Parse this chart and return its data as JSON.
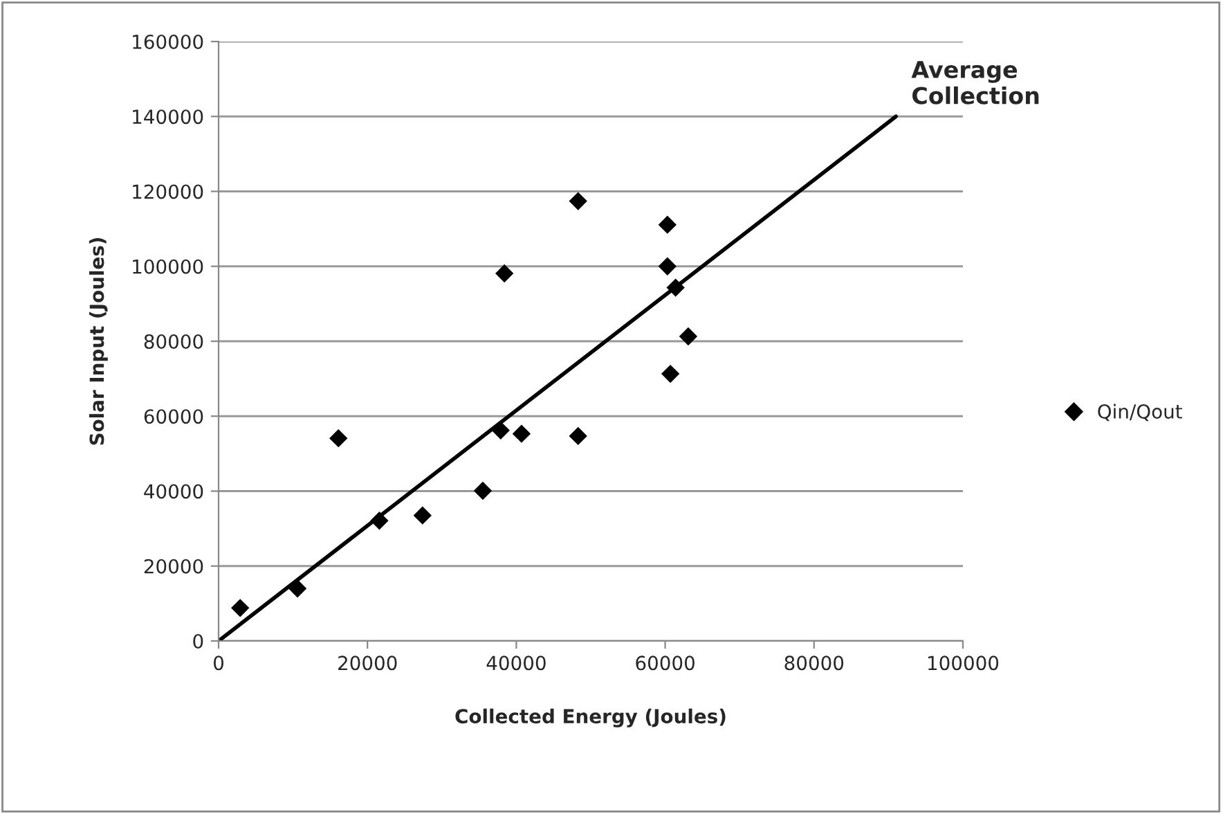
{
  "chart_data": {
    "type": "scatter",
    "xlabel": "Collected Energy (Joules)",
    "ylabel": "Solar Input (Joules)",
    "series": [
      {
        "name": "Qin/Qout",
        "color": "#000000",
        "marker": "diamond",
        "x": [
          2900,
          10600,
          16100,
          21600,
          27400,
          35500,
          37900,
          38400,
          40700,
          48300,
          60300,
          60300,
          61400,
          63100,
          60700,
          48300
        ],
        "values": [
          8800,
          14000,
          54100,
          32100,
          33500,
          40100,
          56200,
          98100,
          55300,
          117400,
          111100,
          100000,
          94300,
          81300,
          71300,
          54700
        ]
      },
      {
        "type": "line",
        "color": "#000000",
        "marker": "none",
        "line_style": "solid",
        "x": [
          0,
          91000
        ],
        "values": [
          0,
          140000
        ]
      }
    ],
    "annotations": [
      {
        "text": "Average\nCollection",
        "x": 91000,
        "y": 140000
      }
    ],
    "xlim": [
      0,
      100000
    ],
    "xticks": [
      0,
      20000,
      40000,
      60000,
      80000,
      100000
    ],
    "ylim": [
      0,
      160000
    ],
    "yticks": [
      0,
      20000,
      40000,
      60000,
      80000,
      100000,
      120000,
      140000,
      160000
    ],
    "grid": "y",
    "legend": "right"
  }
}
